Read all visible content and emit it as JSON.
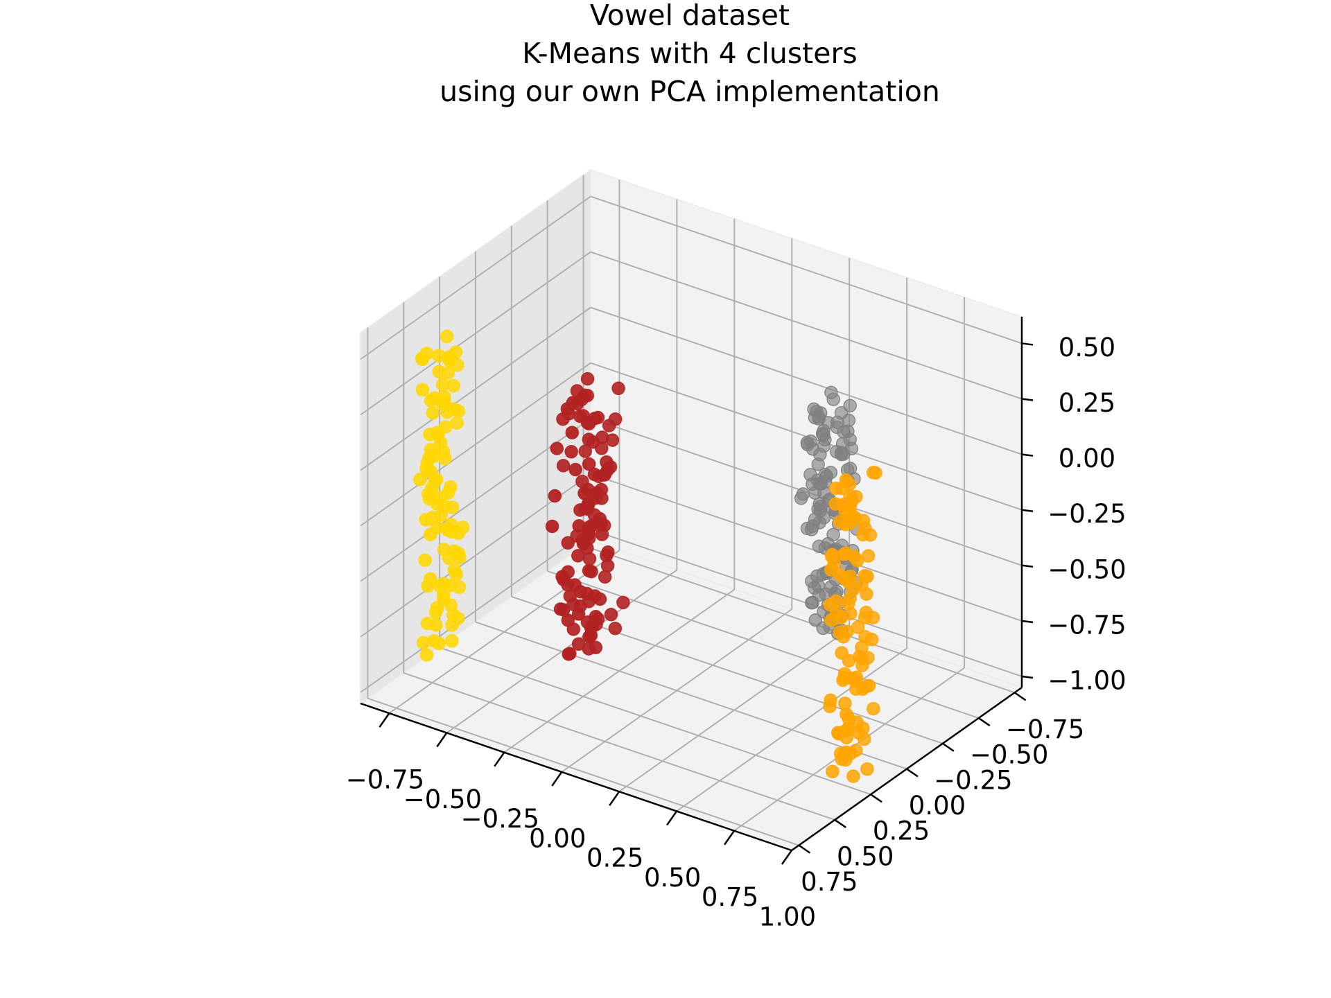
{
  "chart_data": {
    "type": "scatter",
    "title_lines": [
      "Vowel dataset",
      "K-Means with 4 clusters",
      "using our own PCA implementation"
    ],
    "grid": true,
    "x_ticks": [
      "−0.75",
      "−0.50",
      "−0.25",
      "0.00",
      "0.25",
      "0.50",
      "0.75",
      "1.00"
    ],
    "y_ticks": [
      "−0.75",
      "−0.50",
      "−0.25",
      "0.00",
      "0.25",
      "0.50",
      "0.75"
    ],
    "z_ticks": [
      "−1.00",
      "−0.75",
      "−0.50",
      "−0.25",
      "0.00",
      "0.25",
      "0.50"
    ],
    "xlim": [
      -0.875,
      1.0
    ],
    "ylim": [
      -0.8,
      0.8
    ],
    "zlim": [
      -1.05,
      0.62
    ],
    "clusters": [
      {
        "color": "#FFD700",
        "points": 90,
        "x_range": [
          -0.82,
          -0.75
        ],
        "y_range": [
          0.25,
          0.5
        ],
        "z_range": [
          -0.95,
          0.42
        ]
      },
      {
        "color": "#B22222",
        "points": 110,
        "x_range": [
          -0.05,
          0.12
        ],
        "y_range": [
          0.55,
          0.8
        ],
        "z_range": [
          -0.55,
          0.62
        ]
      },
      {
        "color": "#FFA500",
        "points": 100,
        "x_range": [
          0.88,
          1.0
        ],
        "y_range": [
          0.2,
          0.4
        ],
        "z_range": [
          -0.95,
          0.4
        ]
      },
      {
        "color": "#808080",
        "points": 120,
        "x_range": [
          0.15,
          0.3
        ],
        "y_range": [
          -0.8,
          -0.6
        ],
        "z_range": [
          -1.0,
          0.0
        ]
      }
    ]
  }
}
